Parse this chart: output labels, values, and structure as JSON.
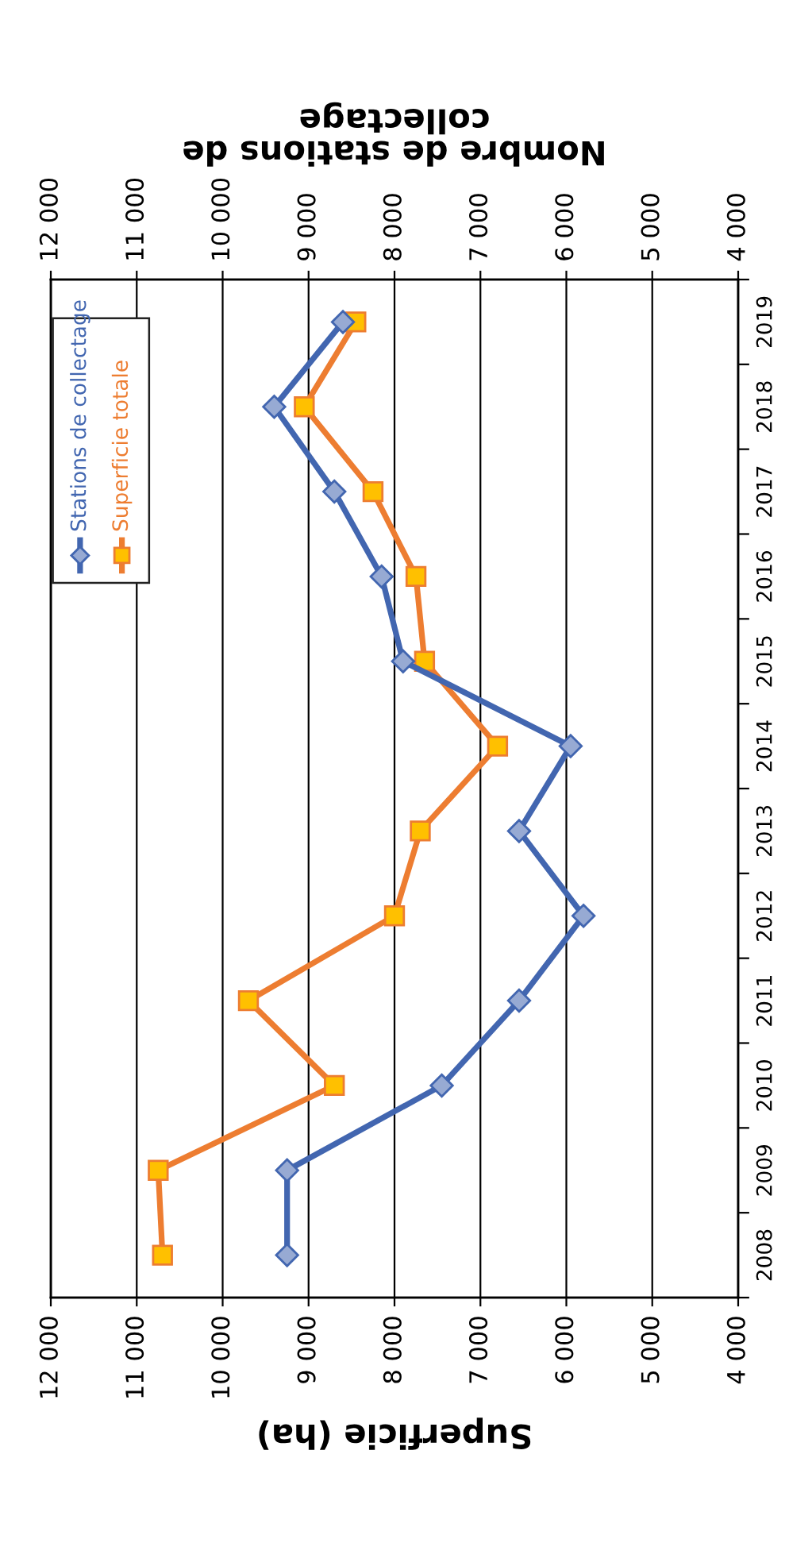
{
  "chart_data": {
    "type": "line",
    "orientation": "horizontal",
    "categories": [
      "2019",
      "2018",
      "2017",
      "2016",
      "2015",
      "2014",
      "2013",
      "2012",
      "2011",
      "2010",
      "2009",
      "2008"
    ],
    "series": [
      {
        "name": "Stations de collectage",
        "color": "#4266b0",
        "axis": "x2",
        "marker": "diamond",
        "values": [
          8600,
          9400,
          8700,
          8150,
          7900,
          5950,
          6550,
          5800,
          6550,
          7450,
          9250,
          9250
        ]
      },
      {
        "name": "Superficie totale",
        "color": "#ed7d31",
        "marker": "square",
        "values": [
          8450,
          9050,
          8250,
          7750,
          7650,
          6800,
          7700,
          8000,
          9700,
          8700,
          10750,
          10700
        ]
      }
    ],
    "xlabel": "Superficie (ha)",
    "x2label": "Nombre de stations de collectage",
    "xlim": [
      12000,
      4000
    ],
    "x2lim": [
      12000,
      4000
    ],
    "xticks": [
      {
        "value": 12000,
        "label": "12 000"
      },
      {
        "value": 11000,
        "label": "11 000"
      },
      {
        "value": 10000,
        "label": "10 000"
      },
      {
        "value": 9000,
        "label": "9 000"
      },
      {
        "value": 8000,
        "label": "8 000"
      },
      {
        "value": 7000,
        "label": "7 000"
      },
      {
        "value": 6000,
        "label": "6 000"
      },
      {
        "value": 5000,
        "label": "5 000"
      },
      {
        "value": 4000,
        "label": "4 000"
      }
    ],
    "x2ticks": [
      {
        "value": 12000,
        "label": "12 000"
      },
      {
        "value": 11000,
        "label": "11 000"
      },
      {
        "value": 10000,
        "label": "10 000"
      },
      {
        "value": 9000,
        "label": "9 000"
      },
      {
        "value": 8000,
        "label": "8 000"
      },
      {
        "value": 7000,
        "label": "7 000"
      },
      {
        "value": 6000,
        "label": "6 000"
      },
      {
        "value": 5000,
        "label": "5 000"
      },
      {
        "value": 4000,
        "label": "4 000"
      }
    ],
    "grid": "x",
    "legend": "top left"
  }
}
